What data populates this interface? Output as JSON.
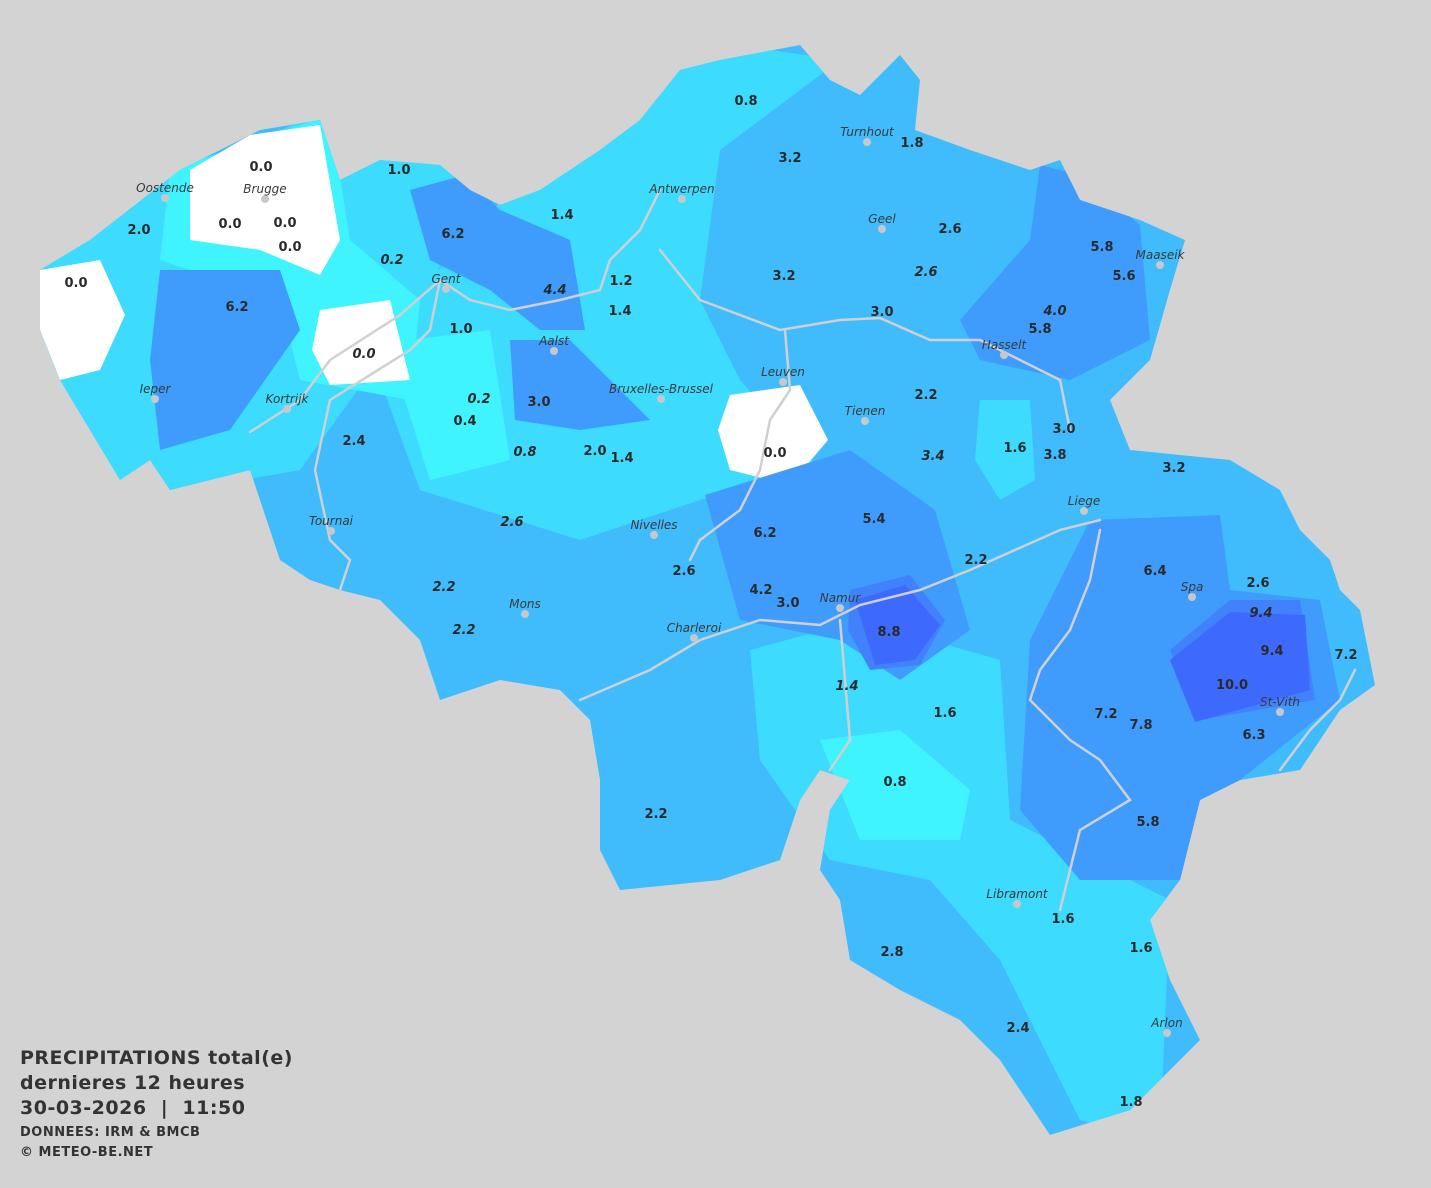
{
  "legend": {
    "title": "PRECIPITATIONS total(e)",
    "period": "dernieres 12 heures",
    "datetime": "30-03-2026  |  11:50",
    "source": "DONNEES: IRM & BMCB",
    "copyright": "© METEO-BE.NET"
  },
  "colors": {
    "background": "#d3d3d3",
    "none": "#ffffff",
    "very_light": "#40f4ff",
    "light": "#3ddcff",
    "base": "#40bcfc",
    "medium": "#3f9cfc",
    "heavy": "#4182fc",
    "very_heavy": "#3d6afc",
    "rivers": "#d0d0d0"
  },
  "cities": [
    "Oostende",
    "Brugge",
    "Gent",
    "Antwerpen",
    "Turnhout",
    "Geel",
    "Maaseik",
    "Aalst",
    "Hasselt",
    "Leuven",
    "Bruxelles-Brussel",
    "Tienen",
    "Ieper",
    "Kortrijk",
    "Tournai",
    "Nivelles",
    "Liege",
    "Spa",
    "Mons",
    "Namur",
    "Charleroi",
    "St-Vith",
    "Libramont",
    "Arlon"
  ],
  "values": [
    "0.0",
    "0.0",
    "0.0",
    "0.0",
    "2.0",
    "0.0",
    "6.2",
    "0.0",
    "1.0",
    "0.2",
    "6.2",
    "1.0",
    "4.4",
    "1.2",
    "1.4",
    "1.4",
    "0.8",
    "3.2",
    "1.8",
    "3.2",
    "2.6",
    "2.6",
    "3.0",
    "5.8",
    "5.6",
    "4.0",
    "5.8",
    "0.2",
    "0.4",
    "3.0",
    "0.8",
    "2.0",
    "1.4",
    "0.0",
    "2.2",
    "3.4",
    "1.6",
    "3.0",
    "3.8",
    "2.4",
    "2.6",
    "5.4",
    "6.2",
    "2.6",
    "2.2",
    "4.2",
    "3.0",
    "2.2",
    "8.8",
    "2.2",
    "3.2",
    "6.4",
    "2.6",
    "9.4",
    "9.4",
    "7.2",
    "10.0",
    "6.3",
    "7.2",
    "7.8",
    "1.4",
    "1.6",
    "0.8",
    "2.2",
    "5.8",
    "1.6",
    "1.6",
    "2.8",
    "2.4",
    "1.8"
  ]
}
